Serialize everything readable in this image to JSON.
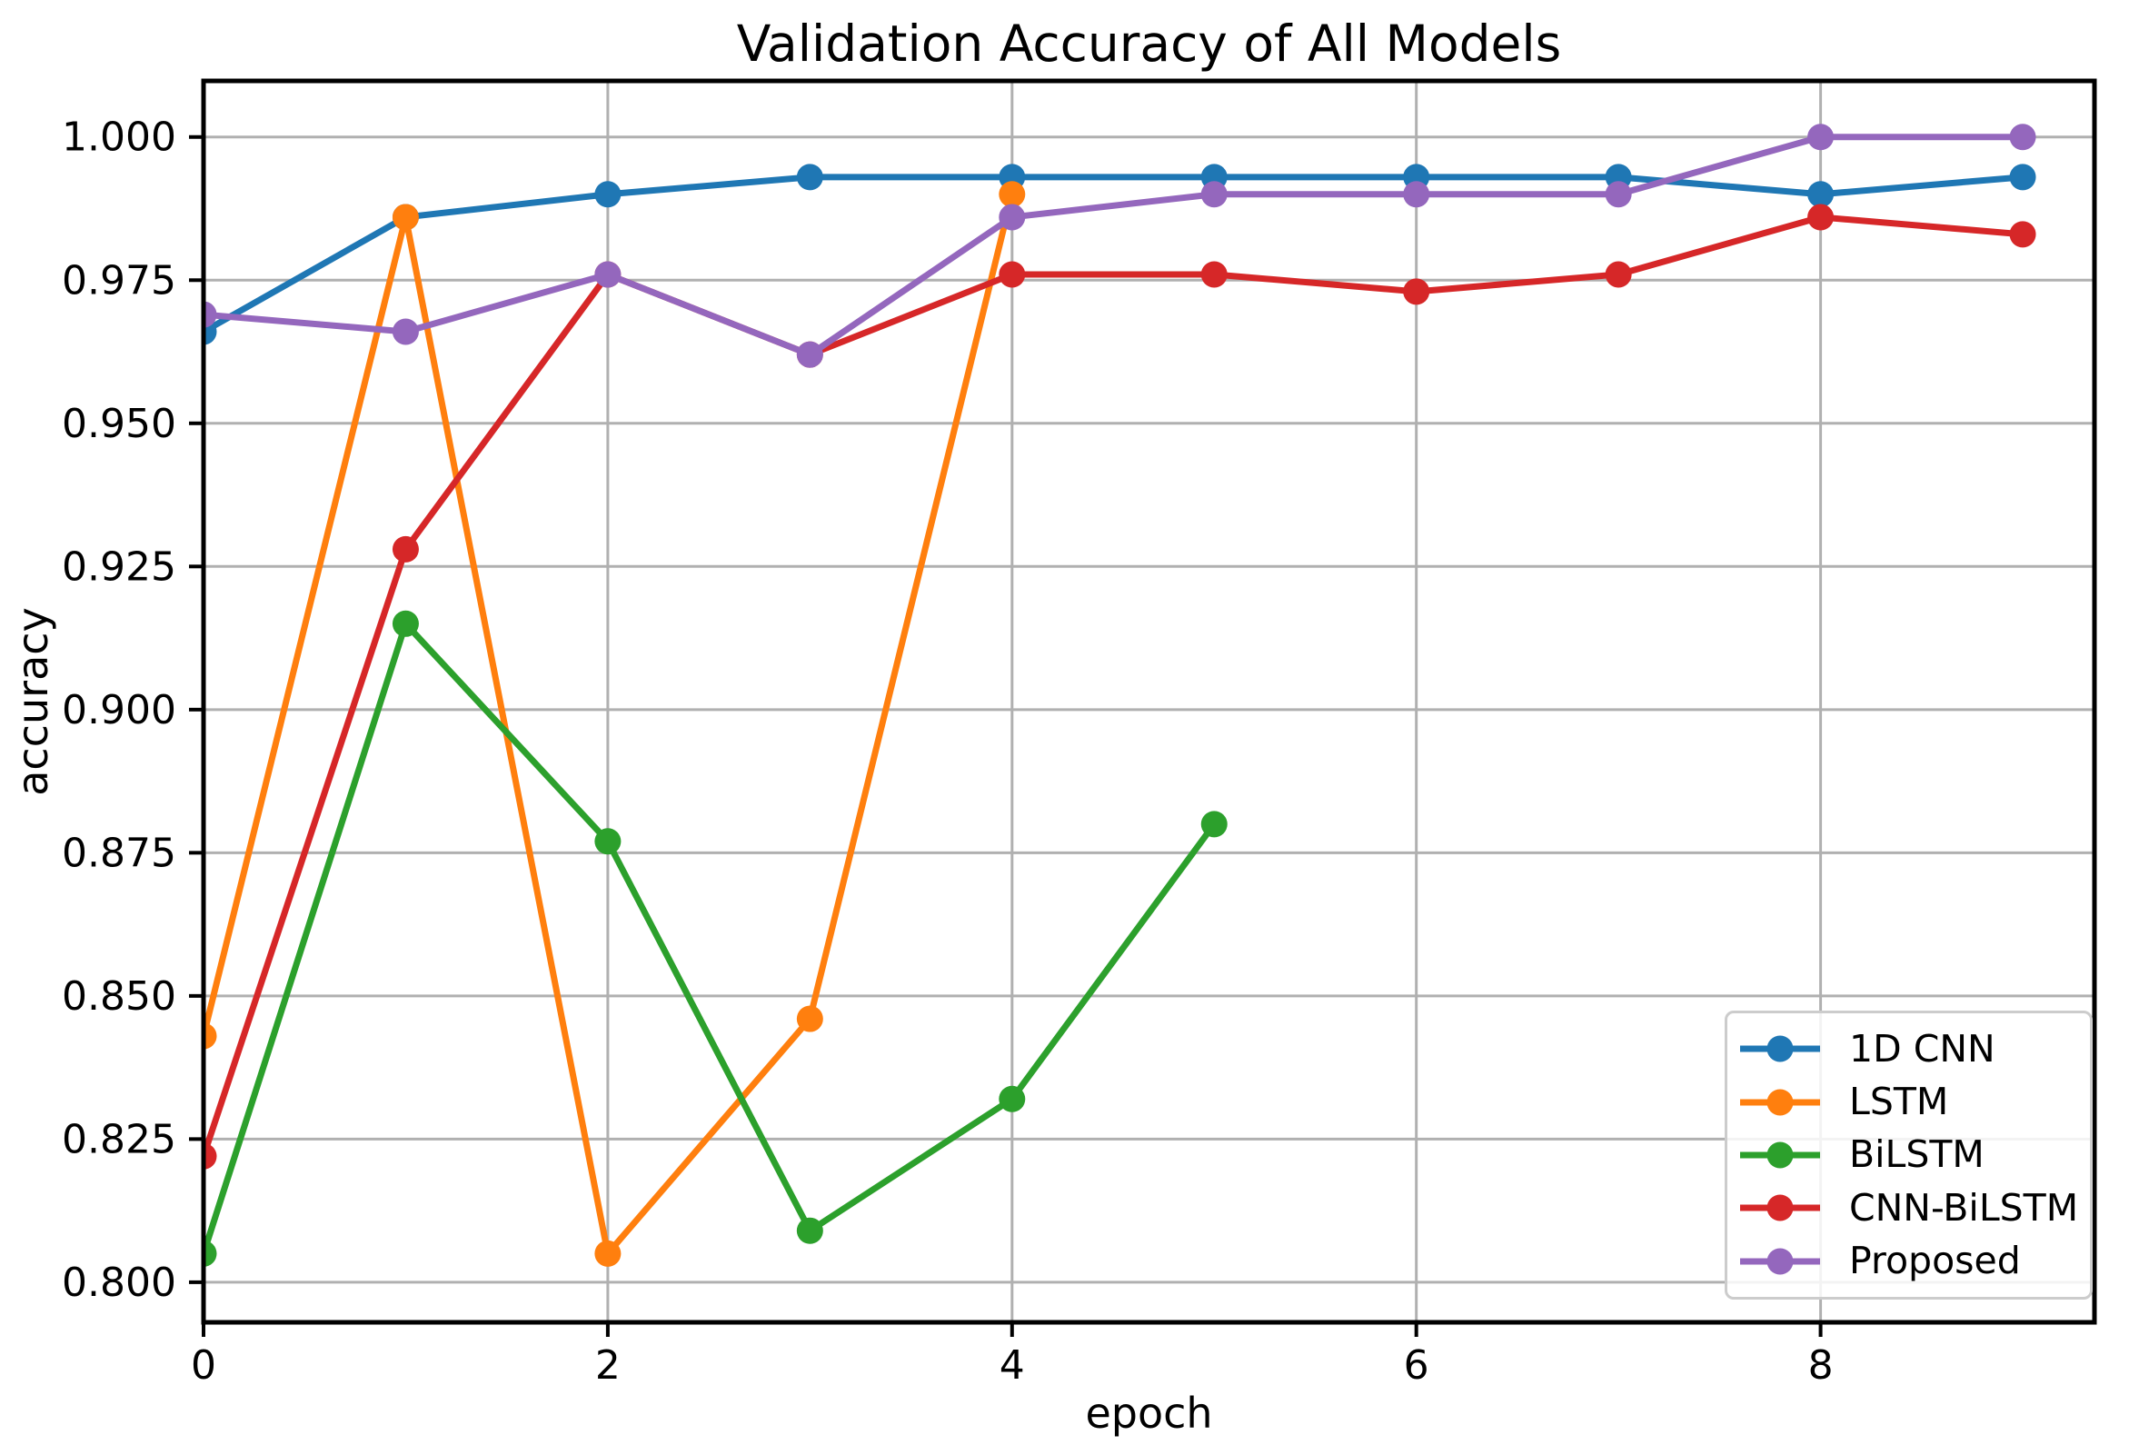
{
  "chart_data": {
    "type": "line",
    "title": "Validation Accuracy of All Models",
    "xlabel": "epoch",
    "ylabel": "accuracy",
    "grid": true,
    "grid_color": "#b0b0b0",
    "legend_position": "lower right",
    "xlim": [
      0,
      9.355
    ],
    "ylim": [
      0.793,
      1.0098
    ],
    "xticks": {
      "values": [
        0,
        2,
        4,
        6,
        8
      ],
      "labels": [
        "0",
        "2",
        "4",
        "6",
        "8"
      ]
    },
    "yticks": {
      "values": [
        0.8,
        0.825,
        0.85,
        0.875,
        0.9,
        0.925,
        0.95,
        0.975,
        1.0
      ],
      "labels": [
        "0.800",
        "0.825",
        "0.850",
        "0.875",
        "0.900",
        "0.925",
        "0.950",
        "0.975",
        "1.000"
      ]
    },
    "series": [
      {
        "name": "1D CNN",
        "color": "#1f77b4",
        "x": [
          0,
          1,
          2,
          3,
          4,
          5,
          6,
          7,
          8,
          9
        ],
        "values": [
          0.966,
          0.986,
          0.99,
          0.993,
          0.993,
          0.993,
          0.993,
          0.993,
          0.99,
          0.993
        ]
      },
      {
        "name": "LSTM",
        "color": "#ff7f0e",
        "x": [
          0,
          1,
          2,
          3,
          4
        ],
        "values": [
          0.843,
          0.986,
          0.805,
          0.846,
          0.99
        ]
      },
      {
        "name": "BiLSTM",
        "color": "#2ca02c",
        "x": [
          0,
          1,
          2,
          3,
          4,
          5
        ],
        "values": [
          0.805,
          0.915,
          0.877,
          0.809,
          0.832,
          0.88
        ]
      },
      {
        "name": "CNN-BiLSTM",
        "color": "#d62728",
        "x": [
          0,
          1,
          2,
          3,
          4,
          5,
          6,
          7,
          8,
          9
        ],
        "values": [
          0.822,
          0.928,
          0.976,
          0.962,
          0.976,
          0.976,
          0.973,
          0.976,
          0.986,
          0.983
        ]
      },
      {
        "name": "Proposed",
        "color": "#9467bd",
        "x": [
          0,
          1,
          2,
          3,
          4,
          5,
          6,
          7,
          8,
          9
        ],
        "values": [
          0.969,
          0.966,
          0.976,
          0.962,
          0.986,
          0.99,
          0.99,
          0.99,
          1.0,
          1.0
        ]
      }
    ]
  }
}
